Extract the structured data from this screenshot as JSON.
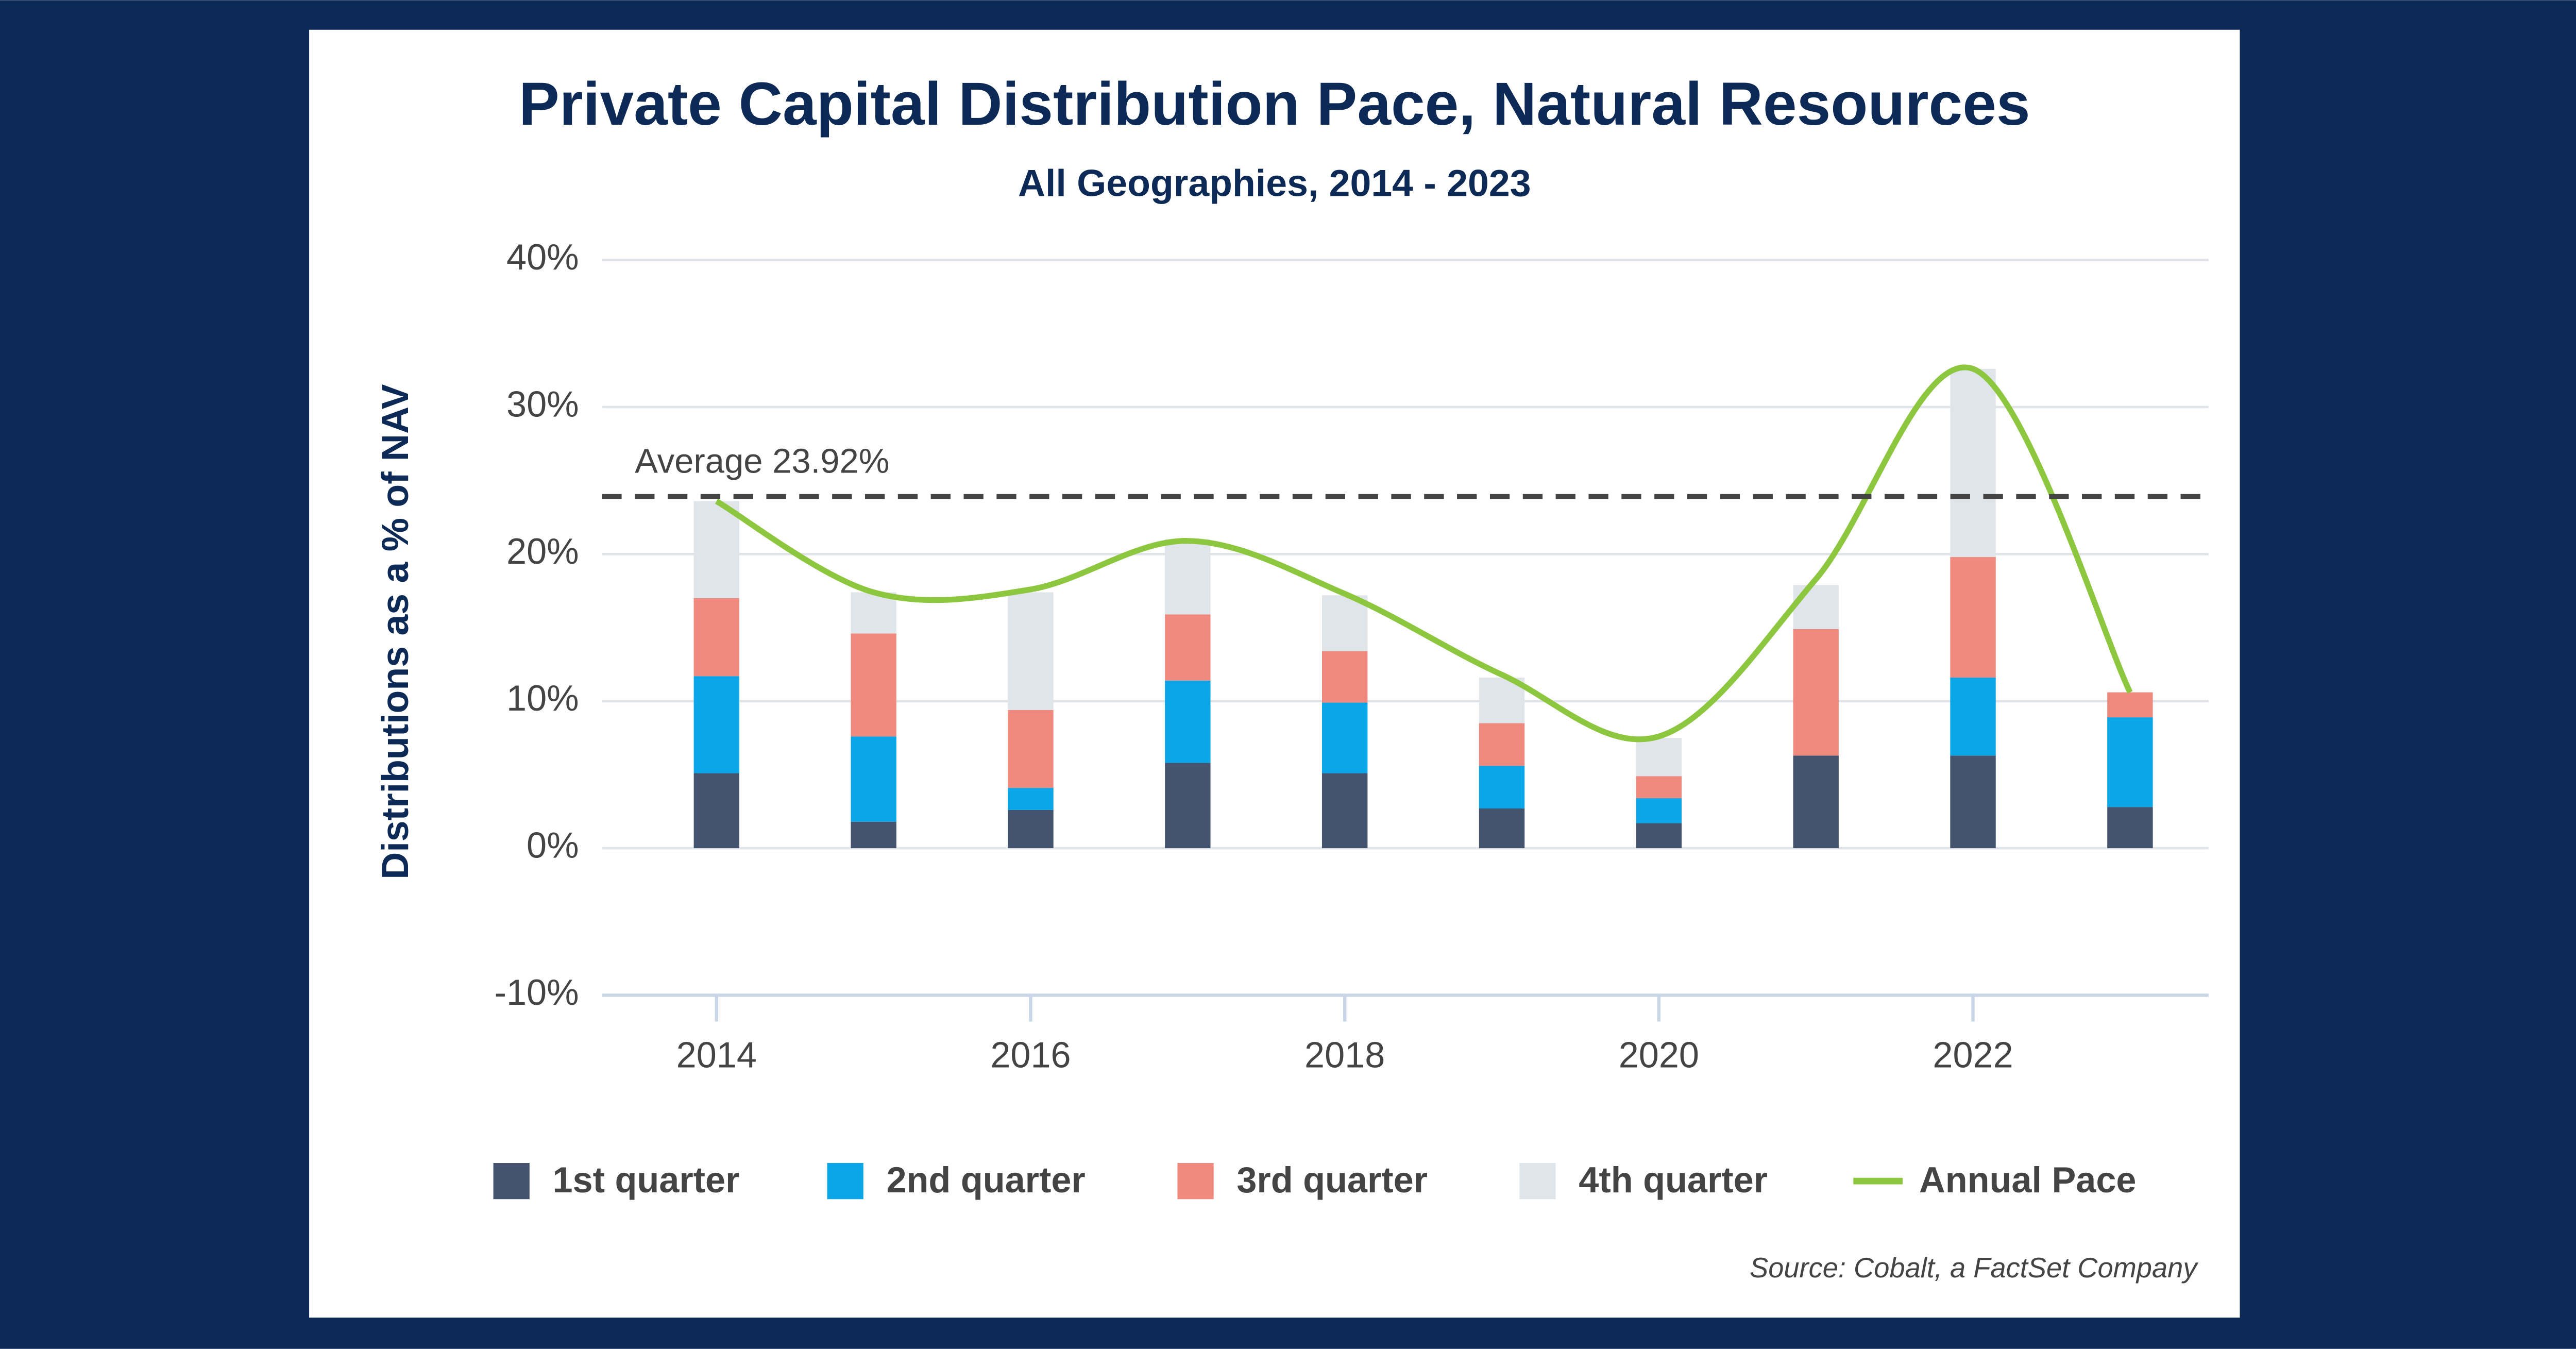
{
  "chart_data": {
    "type": "stacked_bar_line",
    "title": "Private Capital Distribution Pace, Natural Resources",
    "subtitle": "All Geographies, 2014 - 2023",
    "y_label": "Distributions as a % of NAV",
    "source": "Source: Cobalt, a FactSet Company",
    "x": [
      2014,
      2015,
      2016,
      2017,
      2018,
      2019,
      2020,
      2021,
      2022,
      2023
    ],
    "xlim": [
      2013.27,
      2023.5
    ],
    "xticks": [
      2014,
      2016,
      2018,
      2020,
      2022
    ],
    "ylim": [
      -10,
      40
    ],
    "yticks": [
      {
        "value": -10,
        "label": "-10%"
      },
      {
        "value": 0,
        "label": "0%"
      },
      {
        "value": 10,
        "label": "10%"
      },
      {
        "value": 20,
        "label": "20%"
      },
      {
        "value": 30,
        "label": "30%"
      },
      {
        "value": 40,
        "label": "40%"
      }
    ],
    "grid": true,
    "series": [
      {
        "name": "1st quarter",
        "color": "#44546f",
        "values": [
          5.1,
          1.8,
          2.6,
          5.8,
          5.1,
          2.7,
          1.7,
          6.3,
          6.3,
          2.8
        ]
      },
      {
        "name": "2nd quarter",
        "color": "#0aa6e8",
        "values": [
          6.6,
          5.8,
          1.5,
          5.6,
          4.8,
          2.9,
          1.7,
          0,
          5.3,
          6.1
        ]
      },
      {
        "name": "3rd quarter",
        "color": "#f08a7e",
        "values": [
          5.3,
          7.0,
          5.3,
          4.5,
          3.5,
          2.9,
          1.5,
          8.6,
          8.2,
          1.7
        ]
      },
      {
        "name": "4th quarter",
        "color": "#dfe5e9",
        "values": [
          6.6,
          2.8,
          8.0,
          5.1,
          3.8,
          3.1,
          2.6,
          3.0,
          12.8,
          0
        ]
      },
      {
        "name": "Annual Pace",
        "type": "line",
        "color": "#8dc63f",
        "values": [
          23.6,
          17.4,
          17.6,
          20.9,
          17.3,
          11.8,
          7.6,
          18.3,
          32.6,
          10.6
        ]
      }
    ],
    "average": {
      "value": 23.92,
      "label": "Average 23.92%"
    }
  }
}
